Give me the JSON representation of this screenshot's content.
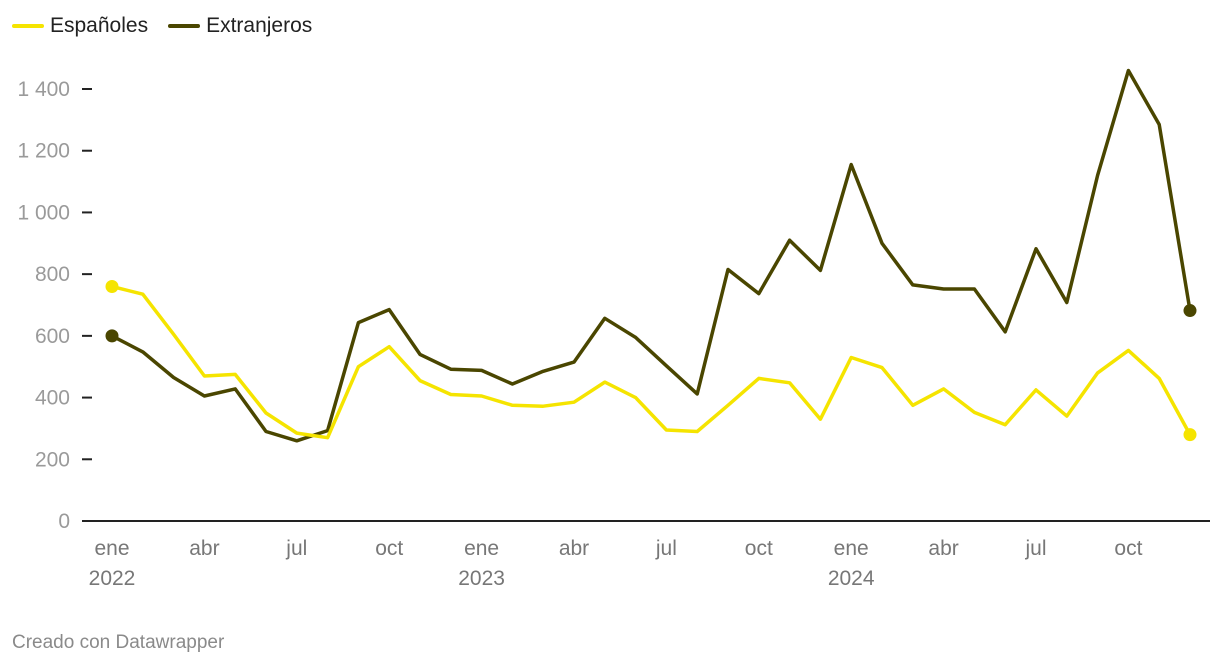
{
  "chart_data": {
    "type": "line",
    "title": "",
    "xlabel": "",
    "ylabel": "",
    "ylim": [
      0,
      1500
    ],
    "yticks": [
      0,
      200,
      400,
      600,
      800,
      1000,
      1200,
      1400
    ],
    "ytick_labels": [
      "0",
      "200",
      "400",
      "600",
      "800",
      "1 000",
      "1 200",
      "1 400"
    ],
    "legend_position": "top-left",
    "grid": false,
    "x_ticks": [
      {
        "index": 0,
        "label": "ene",
        "year": "2022"
      },
      {
        "index": 3,
        "label": "abr",
        "year": ""
      },
      {
        "index": 6,
        "label": "jul",
        "year": ""
      },
      {
        "index": 9,
        "label": "oct",
        "year": ""
      },
      {
        "index": 12,
        "label": "ene",
        "year": "2023"
      },
      {
        "index": 15,
        "label": "abr",
        "year": ""
      },
      {
        "index": 18,
        "label": "jul",
        "year": ""
      },
      {
        "index": 21,
        "label": "oct",
        "year": ""
      },
      {
        "index": 24,
        "label": "ene",
        "year": "2024"
      },
      {
        "index": 27,
        "label": "abr",
        "year": ""
      },
      {
        "index": 30,
        "label": "jul",
        "year": ""
      },
      {
        "index": 33,
        "label": "oct",
        "year": ""
      }
    ],
    "x": [
      "2022-01",
      "2022-02",
      "2022-03",
      "2022-04",
      "2022-05",
      "2022-06",
      "2022-07",
      "2022-08",
      "2022-09",
      "2022-10",
      "2022-11",
      "2022-12",
      "2023-01",
      "2023-02",
      "2023-03",
      "2023-04",
      "2023-05",
      "2023-06",
      "2023-07",
      "2023-08",
      "2023-09",
      "2023-10",
      "2023-11",
      "2023-12",
      "2024-01",
      "2024-02",
      "2024-03",
      "2024-04",
      "2024-05",
      "2024-06",
      "2024-07",
      "2024-08",
      "2024-09",
      "2024-10",
      "2024-11",
      "2024-12"
    ],
    "series": [
      {
        "name": "Españoles",
        "color": "#f5e400",
        "values": [
          760,
          735,
          605,
          470,
          475,
          350,
          285,
          270,
          500,
          565,
          455,
          410,
          405,
          375,
          372,
          385,
          450,
          400,
          295,
          290,
          375,
          462,
          448,
          330,
          530,
          497,
          375,
          428,
          352,
          312,
          425,
          340,
          480,
          553,
          462,
          280
        ]
      },
      {
        "name": "Extranjeros",
        "color": "#4a4600",
        "values": [
          600,
          548,
          465,
          405,
          428,
          290,
          260,
          293,
          643,
          685,
          540,
          492,
          488,
          444,
          485,
          515,
          657,
          595,
          503,
          412,
          815,
          737,
          910,
          812,
          1155,
          900,
          765,
          752,
          752,
          613,
          882,
          708,
          1120,
          1460,
          1285,
          682
        ]
      }
    ]
  },
  "footer": {
    "credit": "Creado con Datawrapper"
  }
}
